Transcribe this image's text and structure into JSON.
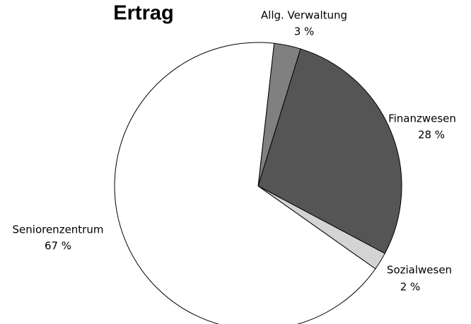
{
  "chart_data": {
    "type": "pie",
    "title": "Ertrag",
    "categories": [
      "Allg. Verwaltung",
      "Finanzwesen",
      "Sozialwesen",
      "Seniorenzentrum"
    ],
    "values": [
      3,
      28,
      2,
      67
    ],
    "value_labels": [
      "3 %",
      "28 %",
      "2 %",
      "67 %"
    ],
    "colors": [
      "#808080",
      "#555555",
      "#d4d4d4",
      "#ffffff"
    ]
  }
}
